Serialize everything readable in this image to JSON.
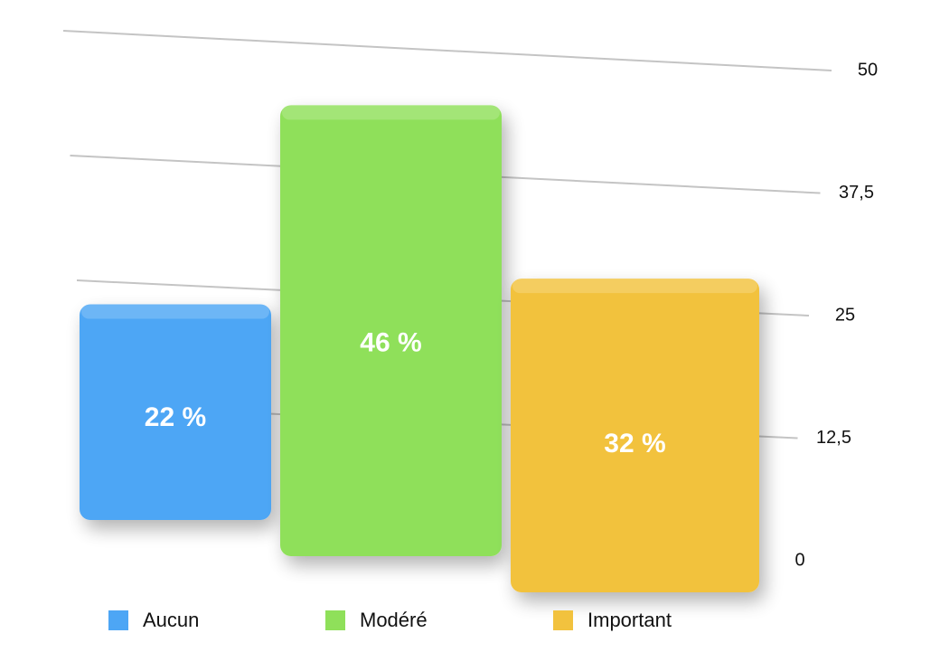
{
  "chart_data": {
    "type": "bar",
    "categories": [
      "Aucun",
      "Modéré",
      "Important"
    ],
    "values": [
      22,
      46,
      32
    ],
    "value_labels": [
      "22 %",
      "46 %",
      "32 %"
    ],
    "colors": [
      "#4da6f5",
      "#8fe05a",
      "#f2c23e"
    ],
    "ylim": [
      0,
      50
    ],
    "yticks": [
      0,
      {
        "value": 12.5,
        "label": "12,5"
      },
      25,
      {
        "value": 37.5,
        "label": "37,5"
      },
      50
    ],
    "grid": true,
    "legend": "bottom"
  }
}
